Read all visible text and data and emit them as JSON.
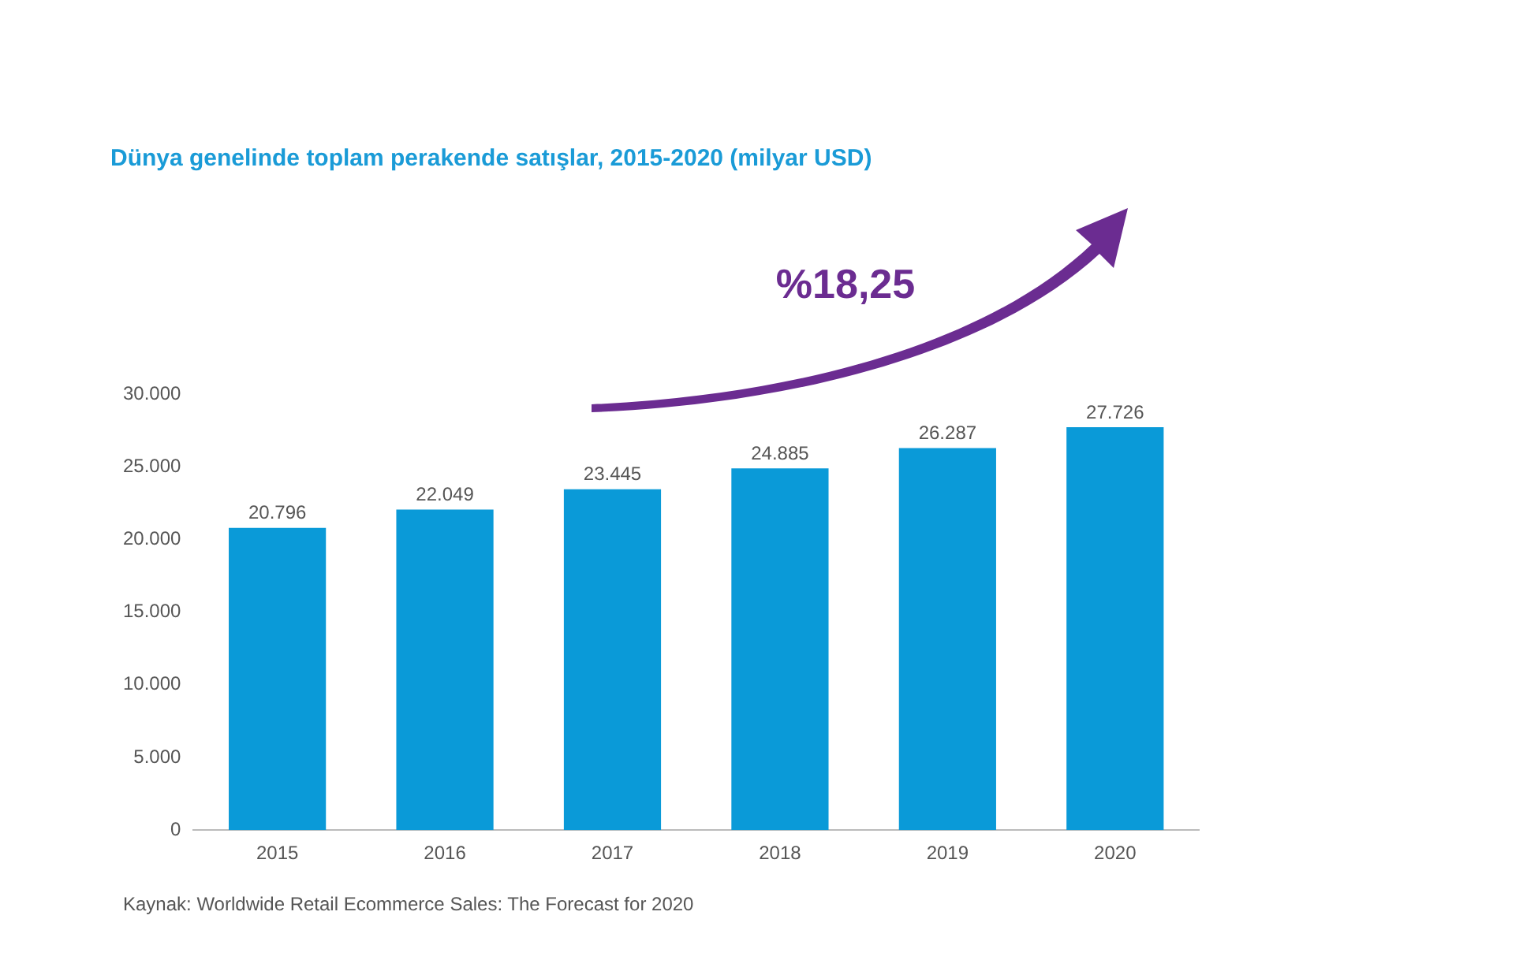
{
  "chart_data": {
    "type": "bar",
    "title": "Dünya genelinde toplam perakende satışlar, 2015-2020 (milyar USD)",
    "categories": [
      "2015",
      "2016",
      "2017",
      "2018",
      "2019",
      "2020"
    ],
    "values": [
      20796,
      22049,
      23445,
      24885,
      26287,
      27726
    ],
    "value_labels": [
      "20.796",
      "22.049",
      "23.445",
      "24.885",
      "26.287",
      "27.726"
    ],
    "color": "#0a9ad8",
    "ylim": [
      0,
      30000
    ],
    "yticks": [
      0,
      {
        "value": 5000,
        "label": "5.000"
      },
      {
        "value": 10000,
        "label": "10.000"
      },
      {
        "value": 15000,
        "label": "15.000"
      },
      {
        "value": 20000,
        "label": "20.000"
      },
      {
        "value": 25000,
        "label": "25.000"
      },
      {
        "value": 30000,
        "label": "30.000"
      }
    ],
    "grid": false,
    "legend": false,
    "annotations": [
      "%18,25",
      "Kaynak: Worldwide Retail Ecommerce Sales: The Forecast for 2020"
    ]
  }
}
